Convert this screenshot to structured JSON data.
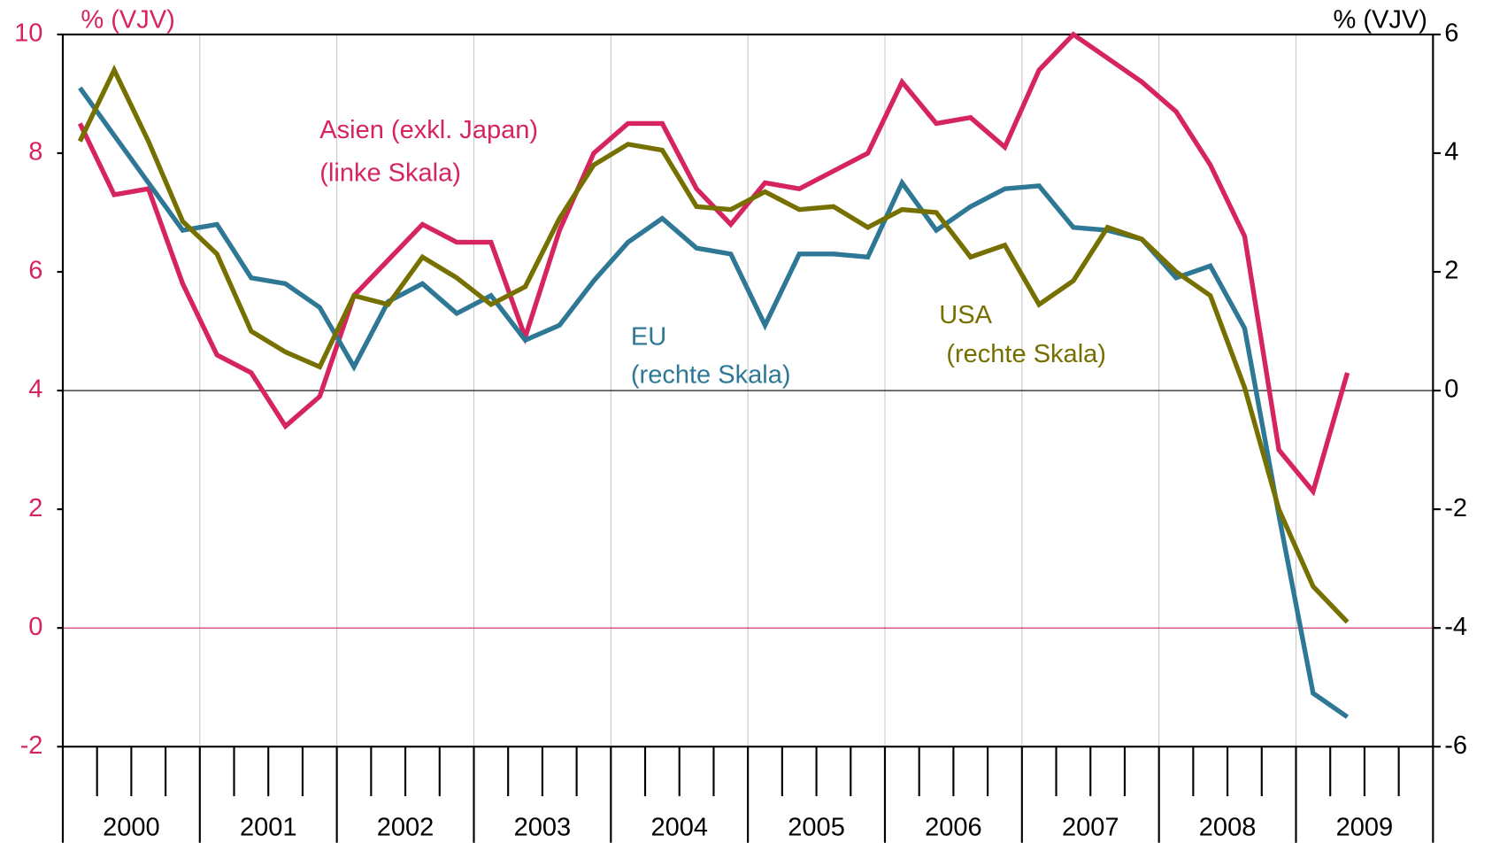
{
  "chart_data": {
    "type": "line",
    "ylabel": "% (VJV)",
    "y2label": "% (VJV)",
    "y_axis_color": "#d6245f",
    "y2_axis_color": "#000000",
    "ylim": [
      -2,
      10
    ],
    "yticks": [
      -2,
      0,
      2,
      4,
      6,
      8,
      10
    ],
    "y2lim": [
      -6,
      6
    ],
    "y2ticks": [
      -6,
      -4,
      -2,
      0,
      2,
      4,
      6
    ],
    "year_labels": [
      "2000",
      "2001",
      "2002",
      "2003",
      "2004",
      "2005",
      "2006",
      "2007",
      "2008",
      "2009"
    ],
    "categories": [
      null,
      null,
      null,
      null,
      null,
      null,
      null,
      null,
      null,
      null,
      null,
      null,
      null,
      null,
      null,
      null,
      null,
      null,
      null,
      null,
      null,
      null,
      null,
      null,
      null,
      null,
      null,
      null,
      null,
      null,
      null,
      null,
      null,
      null,
      null,
      null,
      null,
      null,
      null,
      null
    ],
    "series": [
      {
        "name": "Asien",
        "label": [
          "Asien (exkl. Japan)",
          "(linke Skala)"
        ],
        "color": "#d6245f",
        "axis": "y",
        "values": [
          8.5,
          7.3,
          7.4,
          5.8,
          4.6,
          4.3,
          3.4,
          3.9,
          5.6,
          6.2,
          6.8,
          6.5,
          6.5,
          4.9,
          6.7,
          8.0,
          8.5,
          8.5,
          7.4,
          6.8,
          7.5,
          7.4,
          7.7,
          8.0,
          9.2,
          8.5,
          8.6,
          8.1,
          9.4,
          10.0,
          9.6,
          9.2,
          8.7,
          7.8,
          6.6,
          3.0,
          2.3,
          4.3,
          null,
          null
        ]
      },
      {
        "name": "EU",
        "label": [
          "EU",
          "(rechte Skala)"
        ],
        "color": "#2e7896",
        "axis": "y2",
        "values": [
          5.1,
          4.3,
          3.5,
          2.7,
          2.8,
          1.9,
          1.8,
          1.4,
          0.4,
          1.5,
          1.8,
          1.3,
          1.6,
          0.85,
          1.1,
          1.85,
          2.5,
          2.9,
          2.4,
          2.3,
          1.1,
          2.3,
          2.3,
          2.25,
          3.5,
          2.7,
          3.1,
          3.4,
          3.45,
          2.75,
          2.7,
          2.55,
          1.9,
          2.1,
          1.05,
          -2.1,
          -5.1,
          -5.5,
          null,
          null
        ]
      },
      {
        "name": "USA",
        "label": [
          "USA",
          " (rechte Skala)"
        ],
        "color": "#767000",
        "axis": "y2",
        "values": [
          4.2,
          5.4,
          4.2,
          2.85,
          2.3,
          1.0,
          0.65,
          0.4,
          1.6,
          1.45,
          2.25,
          1.9,
          1.45,
          1.75,
          2.9,
          3.8,
          4.15,
          4.05,
          3.1,
          3.05,
          3.35,
          3.05,
          3.1,
          2.75,
          3.05,
          3.0,
          2.25,
          2.45,
          1.45,
          1.85,
          2.75,
          2.55,
          2.0,
          1.6,
          0.05,
          -2.0,
          -3.3,
          -3.9,
          null,
          null
        ]
      }
    ]
  }
}
